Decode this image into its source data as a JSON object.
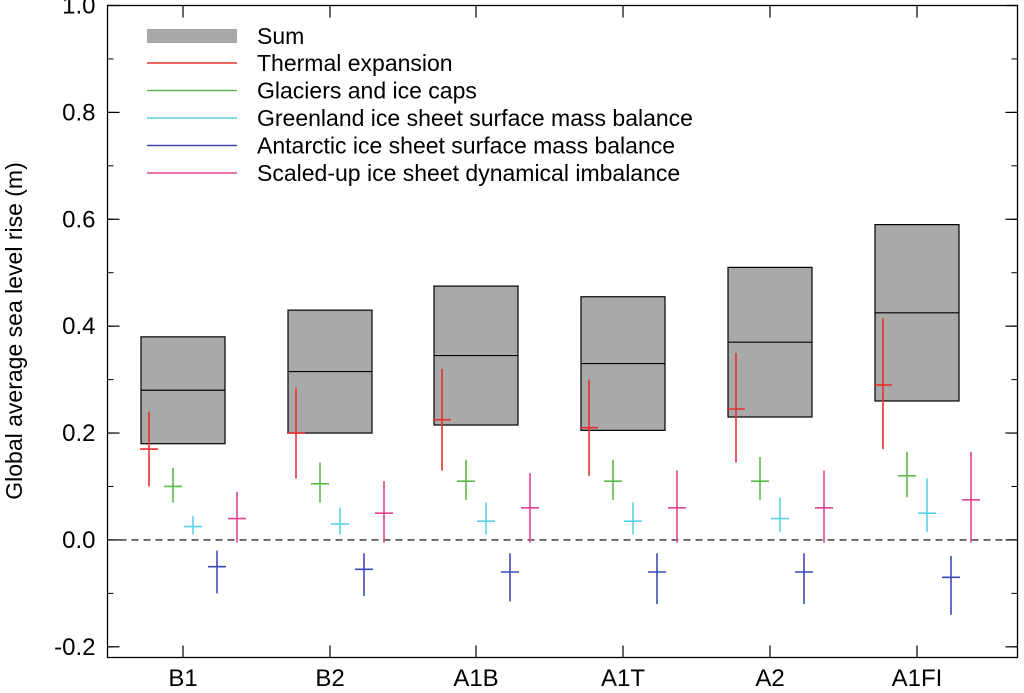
{
  "chart_data": {
    "type": "box",
    "title": "",
    "ylabel": "Global average sea level rise (m)",
    "xlabel": "",
    "ylim": [
      -0.22,
      1.0
    ],
    "yticks": [
      -0.2,
      0.0,
      0.2,
      0.4,
      0.6,
      0.8,
      1.0
    ],
    "ytick_labels": [
      "-0.2",
      "0.0",
      "0.2",
      "0.4",
      "0.6",
      "0.8",
      "1.0"
    ],
    "categories": [
      "B1",
      "B2",
      "A1B",
      "A1T",
      "A2",
      "A1FI"
    ],
    "zero_line": "dashed",
    "sum": {
      "name": "Sum",
      "color": "#a9a9a9",
      "low": [
        0.18,
        0.2,
        0.215,
        0.205,
        0.23,
        0.26
      ],
      "mid": [
        0.28,
        0.315,
        0.345,
        0.33,
        0.37,
        0.425
      ],
      "high": [
        0.38,
        0.43,
        0.475,
        0.455,
        0.51,
        0.59
      ]
    },
    "series": [
      {
        "name": "Thermal expansion",
        "color": "#e8312f",
        "mid": [
          0.17,
          0.2,
          0.225,
          0.21,
          0.245,
          0.29
        ],
        "low": [
          0.1,
          0.115,
          0.13,
          0.12,
          0.145,
          0.17
        ],
        "high": [
          0.24,
          0.285,
          0.32,
          0.3,
          0.35,
          0.415
        ]
      },
      {
        "name": "Glaciers and ice caps",
        "color": "#5cb94a",
        "mid": [
          0.1,
          0.105,
          0.11,
          0.11,
          0.11,
          0.12
        ],
        "low": [
          0.07,
          0.07,
          0.075,
          0.075,
          0.075,
          0.08
        ],
        "high": [
          0.135,
          0.145,
          0.15,
          0.15,
          0.155,
          0.165
        ]
      },
      {
        "name": "Greenland ice sheet surface mass balance",
        "color": "#5ad0e6",
        "mid": [
          0.025,
          0.03,
          0.035,
          0.035,
          0.04,
          0.05
        ],
        "low": [
          0.01,
          0.01,
          0.01,
          0.01,
          0.015,
          0.015
        ],
        "high": [
          0.045,
          0.06,
          0.07,
          0.07,
          0.08,
          0.115
        ]
      },
      {
        "name": "Antarctic ice sheet surface mass balance",
        "color": "#3b4bb2",
        "mid": [
          -0.05,
          -0.055,
          -0.06,
          -0.06,
          -0.06,
          -0.07
        ],
        "low": [
          -0.1,
          -0.105,
          -0.115,
          -0.12,
          -0.12,
          -0.14
        ],
        "high": [
          -0.02,
          -0.025,
          -0.025,
          -0.025,
          -0.025,
          -0.03
        ]
      },
      {
        "name": "Scaled-up ice sheet dynamical imbalance",
        "color": "#e04592",
        "mid": [
          0.04,
          0.05,
          0.06,
          0.06,
          0.06,
          0.075
        ],
        "low": [
          -0.005,
          -0.005,
          -0.005,
          -0.005,
          -0.005,
          -0.005
        ],
        "high": [
          0.09,
          0.11,
          0.125,
          0.13,
          0.13,
          0.165
        ]
      }
    ],
    "legend": {
      "position": "top-left"
    }
  }
}
